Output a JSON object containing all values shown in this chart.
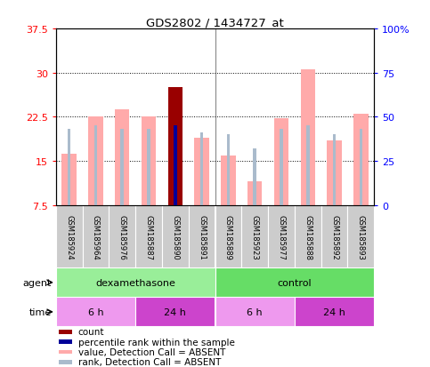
{
  "title": "GDS2802 / 1434727_at",
  "samples": [
    "GSM185924",
    "GSM185964",
    "GSM185976",
    "GSM185887",
    "GSM185890",
    "GSM185891",
    "GSM185889",
    "GSM185923",
    "GSM185977",
    "GSM185888",
    "GSM185892",
    "GSM185893"
  ],
  "value_bars": [
    16.2,
    22.5,
    23.8,
    22.5,
    27.5,
    19.0,
    16.0,
    11.5,
    22.2,
    30.5,
    18.5,
    23.0
  ],
  "rank_pct": [
    43,
    45,
    43,
    43,
    45,
    41,
    40,
    32,
    43,
    45,
    40,
    43
  ],
  "special_red_idx": 4,
  "special_blue_idx": 4,
  "ylim_left": [
    7.5,
    37.5
  ],
  "ylim_right": [
    0,
    100
  ],
  "yticks_left": [
    7.5,
    15.0,
    22.5,
    30.0,
    37.5
  ],
  "ytick_labels_left": [
    "7.5",
    "15",
    "22.5",
    "30",
    "37.5"
  ],
  "yticks_right": [
    0,
    25,
    50,
    75,
    100
  ],
  "ytick_labels_right": [
    "0",
    "25",
    "50",
    "75",
    "100%"
  ],
  "grid_lines": [
    15.0,
    22.5,
    30.0
  ],
  "bar_color_pink": "#FFAAAA",
  "bar_color_red": "#990000",
  "rank_color_light_blue": "#AABBCC",
  "rank_color_blue": "#000099",
  "agent_groups": [
    {
      "label": "dexamethasone",
      "start": 0,
      "end": 5,
      "color": "#99EE99"
    },
    {
      "label": "control",
      "start": 6,
      "end": 11,
      "color": "#66DD66"
    }
  ],
  "time_groups": [
    {
      "label": "6 h",
      "start": 0,
      "end": 2,
      "color": "#EE99EE"
    },
    {
      "label": "24 h",
      "start": 3,
      "end": 5,
      "color": "#CC44CC"
    },
    {
      "label": "6 h",
      "start": 6,
      "end": 8,
      "color": "#EE99EE"
    },
    {
      "label": "24 h",
      "start": 9,
      "end": 11,
      "color": "#CC44CC"
    }
  ],
  "legend_items": [
    {
      "color": "#990000",
      "label": "count"
    },
    {
      "color": "#000099",
      "label": "percentile rank within the sample"
    },
    {
      "color": "#FFAAAA",
      "label": "value, Detection Call = ABSENT"
    },
    {
      "color": "#AABBCC",
      "label": "rank, Detection Call = ABSENT"
    }
  ],
  "sample_box_color": "#CCCCCC",
  "fig_bg": "#FFFFFF"
}
